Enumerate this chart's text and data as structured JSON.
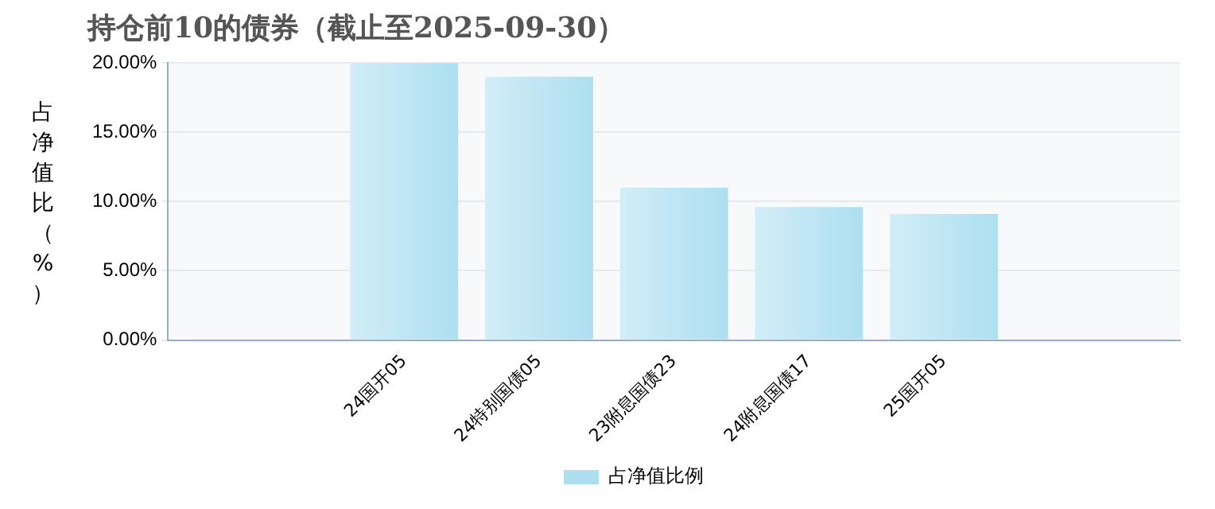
{
  "chart_data": {
    "type": "bar",
    "title": "持仓前10的债券（截止至2025-09-30）",
    "ylabel": "占净值比（%）",
    "categories": [
      "24国开05",
      "24特别国债05",
      "23附息国债23",
      "24附息国债17",
      "25国开05"
    ],
    "series": [
      {
        "name": "占净值比例",
        "color": "#addff0",
        "values": [
          20.0,
          19.0,
          11.0,
          9.6,
          9.1
        ]
      }
    ],
    "ylim": [
      0,
      20
    ],
    "yticks": [
      {
        "value": 0,
        "label": "0.00%"
      },
      {
        "value": 5,
        "label": "5.00%"
      },
      {
        "value": 10,
        "label": "10.00%"
      },
      {
        "value": 15,
        "label": "15.00%"
      },
      {
        "value": 20,
        "label": "20.00%"
      }
    ],
    "grid": "y",
    "legend": "bottom"
  }
}
